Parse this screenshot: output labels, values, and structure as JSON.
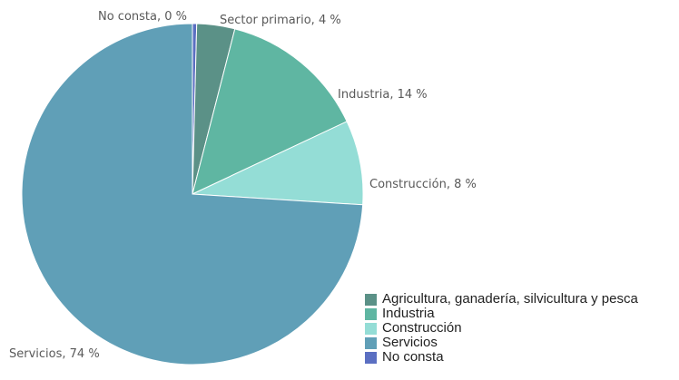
{
  "chart_data": {
    "type": "pie",
    "title": "",
    "slices": [
      {
        "label": "No consta",
        "value": 0.4,
        "display": "No consta, 0 %",
        "color": "#5b6fc2"
      },
      {
        "label": "Agricultura, ganadería, silvicultura y pesca",
        "value": 3.6,
        "display": "Sector primario, 4 %",
        "color": "#5b9187"
      },
      {
        "label": "Industria",
        "value": 14,
        "display": "Industria, 14 %",
        "color": "#5fb6a2"
      },
      {
        "label": "Construcción",
        "value": 8,
        "display": "Construcción, 8 %",
        "color": "#94ddd6"
      },
      {
        "label": "Servicios",
        "value": 74,
        "display": "Servicios, 74 %",
        "color": "#609fb7"
      }
    ],
    "legend": {
      "position": "bottom-right",
      "items": [
        {
          "label": "Agricultura, ganadería, silvicultura y pesca",
          "color": "#5b9187"
        },
        {
          "label": "Industria",
          "color": "#5fb6a2"
        },
        {
          "label": "Construcción",
          "color": "#94ddd6"
        },
        {
          "label": "Servicios",
          "color": "#609fb7"
        },
        {
          "label": "No consta",
          "color": "#5b6fc2"
        }
      ]
    }
  }
}
